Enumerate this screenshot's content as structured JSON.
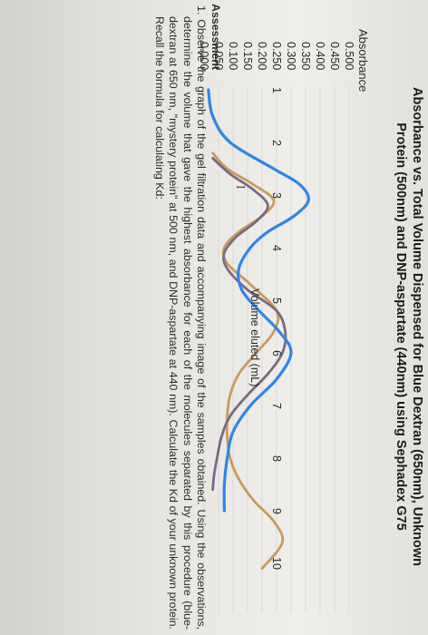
{
  "chart_data": {
    "type": "line",
    "title_line1": "Absorbance vs. Total Volume Dispensed for Blue Dextran (650nm), Unknown",
    "title_line2": "Protein (500nm) and DNP-aspartate (440nm) using Sephadex G75",
    "ylabel": "Absorbance",
    "xlabel": "Volume eluted (mL)",
    "yticks": [
      "0.500",
      "0.450",
      "0.400",
      "0.350",
      "0.300",
      "0.250",
      "0.200",
      "0.150",
      "0.100",
      "0.050",
      "0.000"
    ],
    "xticks": [
      "1",
      "2",
      "3",
      "4",
      "5",
      "6",
      "7",
      "8",
      "9",
      "10"
    ],
    "ylim": [
      0,
      0.5
    ],
    "xlim": [
      0.6,
      10.6
    ],
    "grid": "horizontal",
    "series": [
      {
        "color": "#2f86e6",
        "x": [
          1,
          1.5,
          2,
          2.5,
          2.8,
          3.1,
          3.4,
          3.7,
          4,
          4.4,
          4.8,
          5.2,
          5.6,
          6,
          6.5,
          7,
          7.5,
          8,
          8.5,
          9
        ],
        "y": [
          0.015,
          0.03,
          0.09,
          0.24,
          0.33,
          0.36,
          0.31,
          0.22,
          0.16,
          0.12,
          0.13,
          0.19,
          0.26,
          0.3,
          0.25,
          0.16,
          0.1,
          0.08,
          0.07,
          0.07
        ]
      },
      {
        "color": "#c99a5a",
        "x": [
          2.2,
          2.5,
          2.8,
          3.1,
          3.4,
          3.7,
          4,
          4.3,
          4.7,
          5.2,
          5.6,
          6,
          6.4,
          6.8,
          7.2,
          7.6,
          8,
          8.4,
          8.8,
          9.2,
          9.6,
          10.1
        ],
        "y": [
          0.03,
          0.08,
          0.17,
          0.24,
          0.2,
          0.12,
          0.07,
          0.08,
          0.16,
          0.25,
          0.24,
          0.18,
          0.12,
          0.09,
          0.08,
          0.08,
          0.09,
          0.12,
          0.17,
          0.24,
          0.27,
          0.2
        ]
      },
      {
        "color": "#7a6a80",
        "x": [
          2.3,
          2.6,
          2.9,
          3.2,
          3.5,
          3.8,
          4.1,
          4.4,
          4.8,
          5.2,
          5.6,
          6,
          6.4,
          6.8,
          7.2,
          7.6,
          8,
          8.3,
          8.6
        ],
        "y": [
          0.03,
          0.09,
          0.17,
          0.22,
          0.18,
          0.11,
          0.07,
          0.08,
          0.15,
          0.25,
          0.28,
          0.27,
          0.22,
          0.15,
          0.09,
          0.06,
          0.045,
          0.035,
          0.03
        ]
      }
    ]
  },
  "assessment": {
    "heading": "Assessment",
    "item1": "1. Observe the graph of the gel filtration data and accompanying image of the samples obtained. Using the observations, determine the volume that gave the highest absorbance for each of the molecules separated by this procedure (blue-dextran at 650 nm, \"mystery protein\" at 500 nm, and DNP-aspartate at 440 nm). Calculate the Kd of your unknown protein. Recall the formula for calculating Kd:"
  }
}
